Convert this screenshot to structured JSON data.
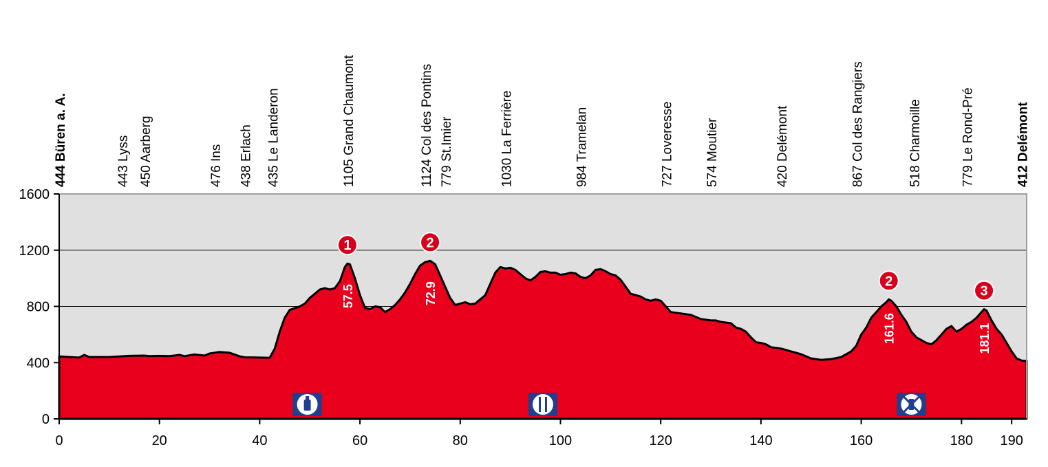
{
  "chart_data": {
    "type": "area",
    "xlim": [
      0,
      193
    ],
    "ylim": [
      0,
      1600
    ],
    "x_ticks": [
      0,
      20,
      40,
      60,
      80,
      100,
      120,
      140,
      160,
      180,
      190
    ],
    "y_ticks": [
      0,
      400,
      800,
      1200,
      1600
    ],
    "grid": "horizontal",
    "colors": {
      "fill": "#e8001c",
      "background": "#e0e0e0",
      "line": "#000000",
      "icon": "#1f3f8f"
    },
    "profile": [
      [
        0,
        444
      ],
      [
        2,
        440
      ],
      [
        4,
        436
      ],
      [
        5,
        455
      ],
      [
        6,
        440
      ],
      [
        10,
        440
      ],
      [
        12,
        444
      ],
      [
        14,
        448
      ],
      [
        17,
        450
      ],
      [
        18,
        446
      ],
      [
        20,
        448
      ],
      [
        22,
        446
      ],
      [
        24,
        455
      ],
      [
        25,
        446
      ],
      [
        27,
        458
      ],
      [
        29,
        450
      ],
      [
        30,
        465
      ],
      [
        32,
        476
      ],
      [
        34,
        470
      ],
      [
        36,
        445
      ],
      [
        37,
        438
      ],
      [
        40,
        436
      ],
      [
        42,
        435
      ],
      [
        43,
        500
      ],
      [
        44,
        620
      ],
      [
        45,
        720
      ],
      [
        46,
        775
      ],
      [
        48,
        800
      ],
      [
        49,
        820
      ],
      [
        50,
        860
      ],
      [
        51,
        890
      ],
      [
        52,
        920
      ],
      [
        53,
        930
      ],
      [
        54,
        920
      ],
      [
        55,
        930
      ],
      [
        56,
        980
      ],
      [
        57,
        1080
      ],
      [
        57.5,
        1105
      ],
      [
        58,
        1100
      ],
      [
        59,
        1000
      ],
      [
        60,
        880
      ],
      [
        61,
        790
      ],
      [
        62,
        780
      ],
      [
        63,
        800
      ],
      [
        64,
        795
      ],
      [
        65,
        760
      ],
      [
        66,
        780
      ],
      [
        67,
        810
      ],
      [
        68,
        850
      ],
      [
        69,
        900
      ],
      [
        70,
        960
      ],
      [
        71,
        1030
      ],
      [
        72,
        1090
      ],
      [
        73,
        1115
      ],
      [
        74,
        1124
      ],
      [
        75,
        1100
      ],
      [
        76,
        1020
      ],
      [
        77,
        940
      ],
      [
        78,
        860
      ],
      [
        79,
        810
      ],
      [
        80,
        820
      ],
      [
        81,
        830
      ],
      [
        82,
        815
      ],
      [
        83,
        820
      ],
      [
        84,
        850
      ],
      [
        85,
        880
      ],
      [
        86,
        960
      ],
      [
        87,
        1040
      ],
      [
        88,
        1080
      ],
      [
        89,
        1070
      ],
      [
        90,
        1075
      ],
      [
        91,
        1060
      ],
      [
        92,
        1030
      ],
      [
        93,
        1000
      ],
      [
        94,
        985
      ],
      [
        95,
        1010
      ],
      [
        96,
        1045
      ],
      [
        97,
        1050
      ],
      [
        98,
        1040
      ],
      [
        99,
        1040
      ],
      [
        100,
        1025
      ],
      [
        101,
        1030
      ],
      [
        102,
        1040
      ],
      [
        103,
        1035
      ],
      [
        104,
        1010
      ],
      [
        105,
        1000
      ],
      [
        106,
        1020
      ],
      [
        107,
        1060
      ],
      [
        108,
        1065
      ],
      [
        109,
        1050
      ],
      [
        110,
        1030
      ],
      [
        111,
        1020
      ],
      [
        112,
        990
      ],
      [
        113,
        940
      ],
      [
        114,
        890
      ],
      [
        115,
        880
      ],
      [
        116,
        870
      ],
      [
        117,
        850
      ],
      [
        118,
        840
      ],
      [
        119,
        850
      ],
      [
        120,
        840
      ],
      [
        121,
        800
      ],
      [
        122,
        760
      ],
      [
        124,
        750
      ],
      [
        126,
        740
      ],
      [
        128,
        710
      ],
      [
        130,
        700
      ],
      [
        131,
        700
      ],
      [
        132,
        690
      ],
      [
        134,
        680
      ],
      [
        135,
        650
      ],
      [
        136,
        640
      ],
      [
        137,
        620
      ],
      [
        138,
        580
      ],
      [
        139,
        545
      ],
      [
        140,
        540
      ],
      [
        141,
        530
      ],
      [
        142,
        510
      ],
      [
        144,
        500
      ],
      [
        146,
        480
      ],
      [
        148,
        460
      ],
      [
        150,
        430
      ],
      [
        152,
        420
      ],
      [
        154,
        425
      ],
      [
        156,
        440
      ],
      [
        158,
        480
      ],
      [
        159,
        520
      ],
      [
        160,
        600
      ],
      [
        161,
        650
      ],
      [
        162,
        720
      ],
      [
        163,
        760
      ],
      [
        164,
        800
      ],
      [
        165,
        830
      ],
      [
        165.5,
        850
      ],
      [
        166,
        840
      ],
      [
        167,
        800
      ],
      [
        168,
        740
      ],
      [
        169,
        690
      ],
      [
        170,
        620
      ],
      [
        171,
        580
      ],
      [
        172,
        560
      ],
      [
        173,
        540
      ],
      [
        174,
        530
      ],
      [
        175,
        560
      ],
      [
        176,
        600
      ],
      [
        177,
        640
      ],
      [
        178,
        660
      ],
      [
        179,
        620
      ],
      [
        180,
        640
      ],
      [
        181,
        670
      ],
      [
        182,
        690
      ],
      [
        183,
        720
      ],
      [
        184,
        760
      ],
      [
        184.5,
        780
      ],
      [
        185,
        770
      ],
      [
        186,
        700
      ],
      [
        187,
        640
      ],
      [
        188,
        600
      ],
      [
        189,
        540
      ],
      [
        190,
        480
      ],
      [
        191,
        430
      ],
      [
        192,
        415
      ],
      [
        193,
        412
      ]
    ],
    "places": [
      {
        "km": 0,
        "label": "444 Büren a. A.",
        "bold": true
      },
      {
        "km": 12.5,
        "label": "443 Lyss"
      },
      {
        "km": 17,
        "label": "450 Aarberg"
      },
      {
        "km": 31,
        "label": "476 Ins"
      },
      {
        "km": 37,
        "label": "438 Erlach"
      },
      {
        "km": 42.5,
        "label": "435 Le Landeron"
      },
      {
        "km": 57.5,
        "label": "1105 Grand Chaumont"
      },
      {
        "km": 73,
        "label": "1124 Col des Pontins"
      },
      {
        "km": 77,
        "label": "779 St.Imier"
      },
      {
        "km": 89,
        "label": "1030 La Ferrière"
      },
      {
        "km": 104,
        "label": "984 Tramelan"
      },
      {
        "km": 121,
        "label": "727 Loveresse"
      },
      {
        "km": 130,
        "label": "574 Moutier"
      },
      {
        "km": 144,
        "label": "420 Delémont"
      },
      {
        "km": 159,
        "label": "867 Col des Rangiers"
      },
      {
        "km": 170.5,
        "label": "518 Charmoille"
      },
      {
        "km": 181,
        "label": "779 Le Rond-Pré"
      },
      {
        "km": 192,
        "label": "412 Delémont",
        "bold": true
      }
    ],
    "climbs": [
      {
        "km": 57.5,
        "elev": 1105,
        "category": "1",
        "km_label": "57.5"
      },
      {
        "km": 74,
        "elev": 1124,
        "category": "2",
        "km_label": "72.9"
      },
      {
        "km": 165.5,
        "elev": 850,
        "category": "2",
        "km_label": "161.6"
      },
      {
        "km": 184.5,
        "elev": 780,
        "category": "3",
        "km_label": "181.1"
      }
    ],
    "icons": [
      {
        "km": 49.5,
        "name": "bottle-feed-icon"
      },
      {
        "km": 96.5,
        "name": "food-zone-icon"
      },
      {
        "km": 170,
        "name": "no-bottle-icon"
      }
    ]
  }
}
